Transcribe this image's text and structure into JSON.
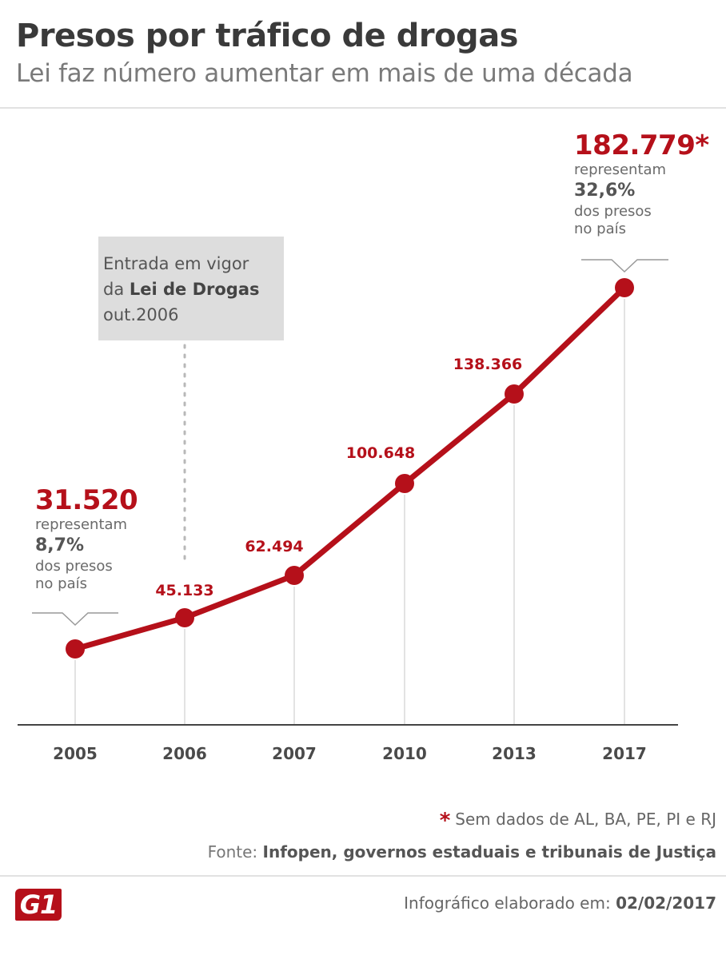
{
  "header": {
    "title": "Presos por tráfico de drogas",
    "subtitle": "Lei faz número aumentar em mais de uma década"
  },
  "event": {
    "line1": "Entrada em vigor",
    "line2_prefix": "da ",
    "line2_bold": "Lei de Drogas",
    "line3": "out.2006"
  },
  "callouts": {
    "first": {
      "value": "31.520",
      "text1": "representam",
      "pct": "8,7%",
      "text2": "dos presos",
      "text3": "no país"
    },
    "last": {
      "value": "182.779*",
      "text1": "representam",
      "pct": "32,6%",
      "text2": "dos presos",
      "text3": "no país"
    }
  },
  "chart_data": {
    "type": "line",
    "categories": [
      "2005",
      "2006",
      "2007",
      "2010",
      "2013",
      "2017"
    ],
    "values": [
      31520,
      45133,
      62494,
      100648,
      138366,
      182779
    ],
    "value_labels": [
      "31.520",
      "45.133",
      "62.494",
      "100.648",
      "138.366",
      "182.779*"
    ],
    "title": "Presos por tráfico de drogas",
    "subtitle": "Lei faz número aumentar em mais de uma década",
    "xlabel": "",
    "ylabel": "",
    "ylim": [
      0,
      200000
    ],
    "grid": false,
    "annotation": "Entrada em vigor da Lei de Drogas out.2006",
    "line_color": "#b5101a"
  },
  "footer": {
    "star": "*",
    "footnote": "Sem dados de AL, BA, PE, PI e RJ",
    "source_label": "Fonte: ",
    "source_text": "Infopen, governos estaduais e tribunais de Justiça",
    "logo": "G1",
    "credit_label": "Infográfico elaborado em: ",
    "credit_date": "02/02/2017"
  },
  "colors": {
    "accent": "#b5101a",
    "gray_box": "#dddddd",
    "text": "#4a4a4a"
  }
}
